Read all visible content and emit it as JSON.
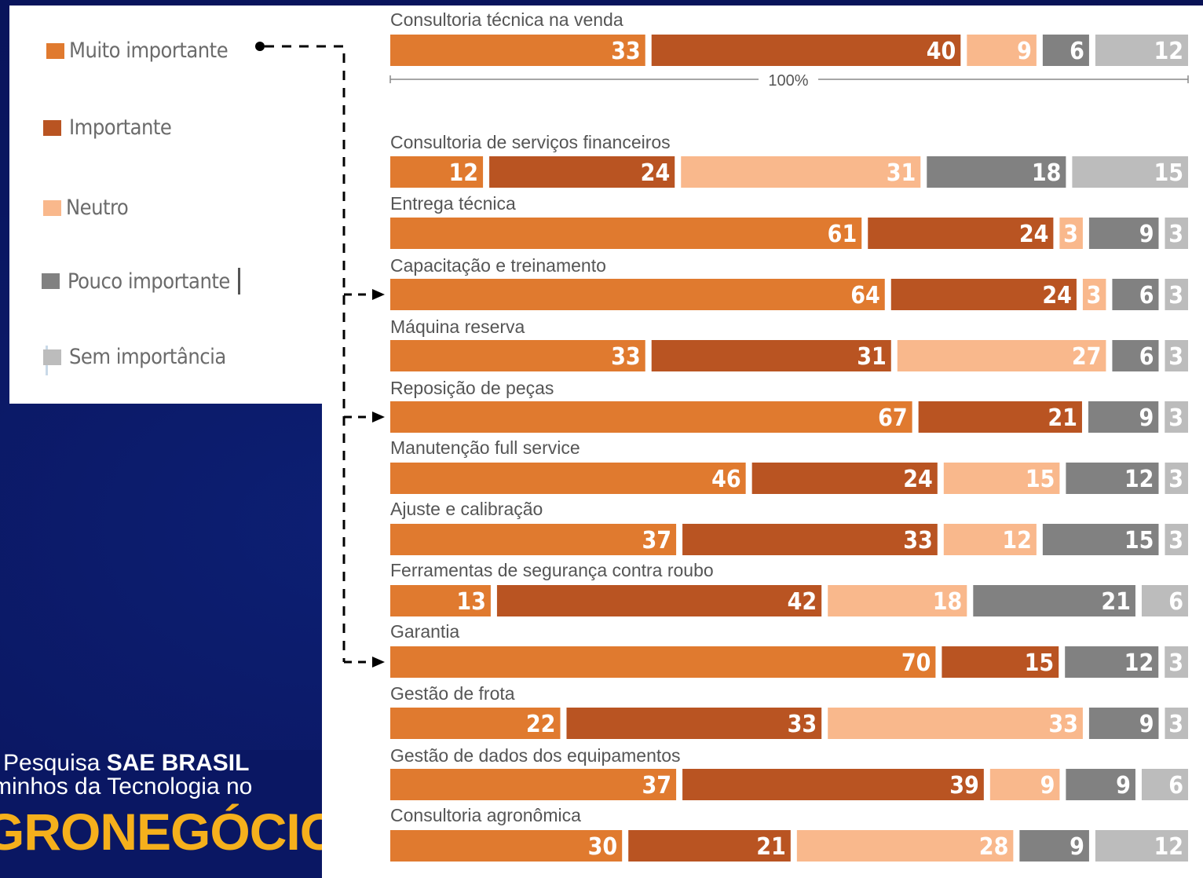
{
  "chart_data": {
    "type": "bar",
    "orientation": "horizontal",
    "stacked": "100%",
    "scale_label": "100%",
    "series": [
      {
        "name": "Muito importante",
        "color": "#e07a2f",
        "values": [
          33,
          12,
          61,
          64,
          33,
          67,
          46,
          37,
          13,
          70,
          22,
          37,
          30
        ]
      },
      {
        "name": "Importante",
        "color": "#b95422",
        "values": [
          40,
          24,
          24,
          24,
          31,
          21,
          24,
          33,
          42,
          15,
          33,
          39,
          21
        ]
      },
      {
        "name": "Neutro",
        "color": "#f9b88c",
        "values": [
          9,
          31,
          3,
          3,
          27,
          0,
          15,
          12,
          18,
          0,
          33,
          9,
          28
        ]
      },
      {
        "name": "Pouco importante",
        "color": "#818181",
        "values": [
          6,
          18,
          9,
          6,
          6,
          9,
          12,
          15,
          21,
          12,
          9,
          9,
          9
        ]
      },
      {
        "name": "Sem importância",
        "color": "#bcbcbc",
        "values": [
          12,
          15,
          3,
          3,
          3,
          3,
          3,
          3,
          6,
          3,
          3,
          6,
          12
        ]
      }
    ],
    "categories": [
      "Consultoria técnica na venda",
      "Consultoria de serviços financeiros",
      "Entrega técnica",
      "Capacitação e treinamento",
      "Máquina reserva",
      "Reposição de peças",
      "Manutenção full service",
      "Ajuste e calibração",
      "Ferramentas de segurança contra roubo",
      "Garantia",
      "Gestão de frota",
      "Gestão de dados dos equipamentos",
      "Consultoria agronômica"
    ],
    "highlighted_categories": [
      "Capacitação e treinamento",
      "Reposição de peças",
      "Garantia"
    ],
    "highlighted_series": "Muito importante"
  },
  "legend": {
    "items": [
      {
        "label": "Muito importante",
        "color": "#e07a2f"
      },
      {
        "label": "Importante",
        "color": "#b95422"
      },
      {
        "label": "Neutro",
        "color": "#f9b88c"
      },
      {
        "label": "Pouco importante",
        "color": "#818181"
      },
      {
        "label": "Sem importância",
        "color": "#bcbcbc"
      }
    ]
  },
  "brand": {
    "line1_prefix": "Pesquisa ",
    "line1_bold": "SAE BRASIL",
    "line2": "minhos da Tecnologia no",
    "line3": "GRONEGÓCIO"
  }
}
